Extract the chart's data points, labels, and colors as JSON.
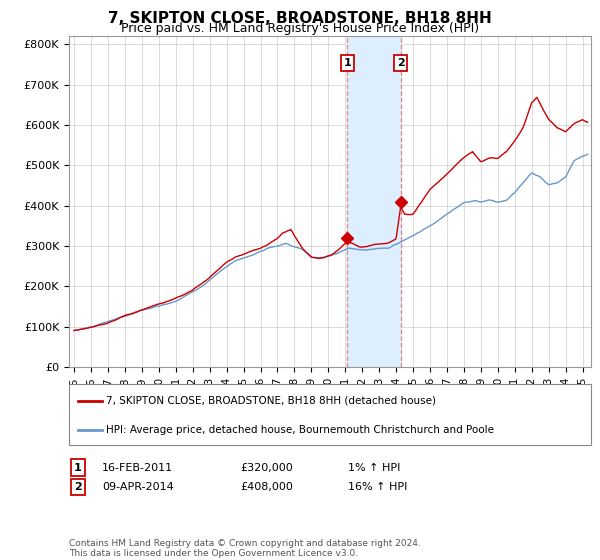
{
  "title": "7, SKIPTON CLOSE, BROADSTONE, BH18 8HH",
  "subtitle": "Price paid vs. HM Land Registry's House Price Index (HPI)",
  "title_fontsize": 11,
  "subtitle_fontsize": 9,
  "xlim": [
    1994.7,
    2025.5
  ],
  "ylim": [
    0,
    820000
  ],
  "yticks": [
    0,
    100000,
    200000,
    300000,
    400000,
    500000,
    600000,
    700000,
    800000
  ],
  "ytick_labels": [
    "£0",
    "£100K",
    "£200K",
    "£300K",
    "£400K",
    "£500K",
    "£600K",
    "£700K",
    "£800K"
  ],
  "xticks": [
    1995,
    1996,
    1997,
    1998,
    1999,
    2000,
    2001,
    2002,
    2003,
    2004,
    2005,
    2006,
    2007,
    2008,
    2009,
    2010,
    2011,
    2012,
    2013,
    2014,
    2015,
    2016,
    2017,
    2018,
    2019,
    2020,
    2021,
    2022,
    2023,
    2024,
    2025
  ],
  "hpi_color": "#6699cc",
  "price_color": "#cc0000",
  "marker_color": "#cc0000",
  "vline_color": "#dd8888",
  "shade_color": "#ddeeff",
  "grid_color": "#cccccc",
  "background_color": "#ffffff",
  "legend_entries": [
    "7, SKIPTON CLOSE, BROADSTONE, BH18 8HH (detached house)",
    "HPI: Average price, detached house, Bournemouth Christchurch and Poole"
  ],
  "transaction1_label": "1",
  "transaction1_date": "16-FEB-2011",
  "transaction1_price": "£320,000",
  "transaction1_hpi": "1% ↑ HPI",
  "transaction1_year": 2011.12,
  "transaction1_value": 320000,
  "transaction2_label": "2",
  "transaction2_date": "09-APR-2014",
  "transaction2_price": "£408,000",
  "transaction2_hpi": "16% ↑ HPI",
  "transaction2_year": 2014.27,
  "transaction2_value": 408000,
  "footer": "Contains HM Land Registry data © Crown copyright and database right 2024.\nThis data is licensed under the Open Government Licence v3.0.",
  "hpi_waypoints_x": [
    1995.0,
    1996.0,
    1997.5,
    1999.0,
    2001.0,
    2002.5,
    2003.5,
    2004.5,
    2005.5,
    2006.5,
    2007.5,
    2008.5,
    2009.0,
    2009.8,
    2010.5,
    2011.2,
    2011.8,
    2012.3,
    2012.8,
    2013.5,
    2014.27,
    2015.0,
    2016.0,
    2017.0,
    2018.0,
    2018.7,
    2019.0,
    2019.5,
    2020.0,
    2020.5,
    2021.0,
    2021.5,
    2022.0,
    2022.5,
    2023.0,
    2023.5,
    2024.0,
    2024.5,
    2025.3
  ],
  "hpi_waypoints_y": [
    90000,
    100000,
    120000,
    140000,
    165000,
    200000,
    235000,
    265000,
    280000,
    298000,
    310000,
    295000,
    275000,
    275000,
    285000,
    300000,
    295000,
    295000,
    298000,
    300000,
    315000,
    330000,
    355000,
    385000,
    415000,
    420000,
    415000,
    420000,
    415000,
    420000,
    440000,
    465000,
    490000,
    480000,
    460000,
    465000,
    480000,
    520000,
    535000
  ],
  "red_waypoints_x": [
    1995.0,
    1996.0,
    1997.0,
    1997.5,
    1998.0,
    1998.5,
    1999.0,
    1999.5,
    2000.0,
    2000.5,
    2001.0,
    2001.5,
    2002.0,
    2002.5,
    2003.0,
    2003.5,
    2004.0,
    2004.5,
    2005.0,
    2005.5,
    2006.0,
    2006.5,
    2007.0,
    2007.3,
    2007.8,
    2008.0,
    2008.5,
    2009.0,
    2009.5,
    2009.8,
    2010.2,
    2010.5,
    2011.0,
    2011.12,
    2011.5,
    2011.8,
    2012.0,
    2012.3,
    2012.8,
    2013.0,
    2013.5,
    2014.0,
    2014.27,
    2014.5,
    2015.0,
    2015.5,
    2016.0,
    2016.5,
    2017.0,
    2017.5,
    2018.0,
    2018.5,
    2019.0,
    2019.5,
    2020.0,
    2020.5,
    2021.0,
    2021.5,
    2022.0,
    2022.3,
    2022.6,
    2023.0,
    2023.5,
    2024.0,
    2024.5,
    2025.0,
    2025.3
  ],
  "red_waypoints_y": [
    90000,
    98000,
    108000,
    115000,
    125000,
    132000,
    140000,
    148000,
    155000,
    162000,
    170000,
    178000,
    190000,
    205000,
    222000,
    242000,
    260000,
    275000,
    282000,
    290000,
    298000,
    308000,
    322000,
    335000,
    345000,
    330000,
    298000,
    278000,
    275000,
    278000,
    285000,
    295000,
    315000,
    320000,
    315000,
    308000,
    308000,
    310000,
    315000,
    315000,
    318000,
    330000,
    408000,
    390000,
    390000,
    420000,
    450000,
    470000,
    490000,
    510000,
    530000,
    545000,
    520000,
    530000,
    530000,
    548000,
    575000,
    608000,
    668000,
    682000,
    658000,
    628000,
    608000,
    598000,
    618000,
    628000,
    622000
  ]
}
